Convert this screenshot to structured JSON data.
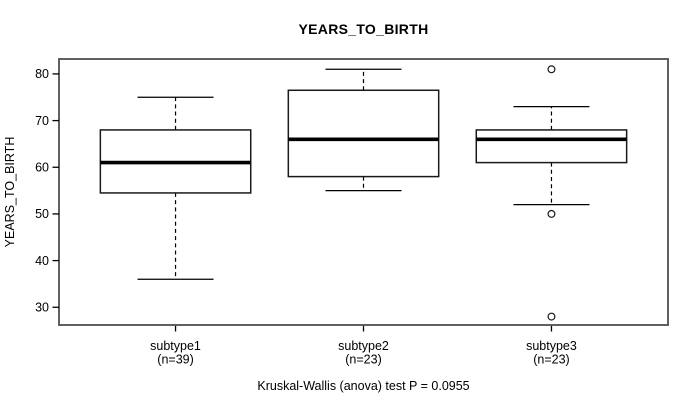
{
  "title": "YEARS_TO_BIRTH",
  "chart_data": {
    "type": "boxplot",
    "title": "YEARS_TO_BIRTH",
    "ylabel": "YEARS_TO_BIRTH",
    "xlabel": "",
    "yticks": [
      30,
      40,
      50,
      60,
      70,
      80
    ],
    "ylim": [
      26.2,
      83.2
    ],
    "grid": false,
    "legend": "none",
    "groups": [
      {
        "label": "subtype1",
        "sublabel": "(n=39)",
        "n": 39,
        "whisker_low": 36,
        "q1": 54.5,
        "median": 61,
        "q3": 68,
        "whisker_high": 75,
        "outliers": []
      },
      {
        "label": "subtype2",
        "sublabel": "(n=23)",
        "n": 23,
        "whisker_low": 55,
        "q1": 58,
        "median": 66,
        "q3": 76.5,
        "whisker_high": 81,
        "outliers": []
      },
      {
        "label": "subtype3",
        "sublabel": "(n=23)",
        "n": 23,
        "whisker_low": 52,
        "q1": 61,
        "median": 66,
        "q3": 68,
        "whisker_high": 73,
        "outliers": [
          81,
          50,
          28
        ]
      }
    ],
    "annotation": "Kruskal-Wallis (anova) test P = 0.0955"
  },
  "colors": {
    "background": "#ffffff",
    "line": "#000000",
    "box_stroke": "#1a1a1a",
    "plot_border": "#4f4f4f",
    "text": "#000000"
  }
}
